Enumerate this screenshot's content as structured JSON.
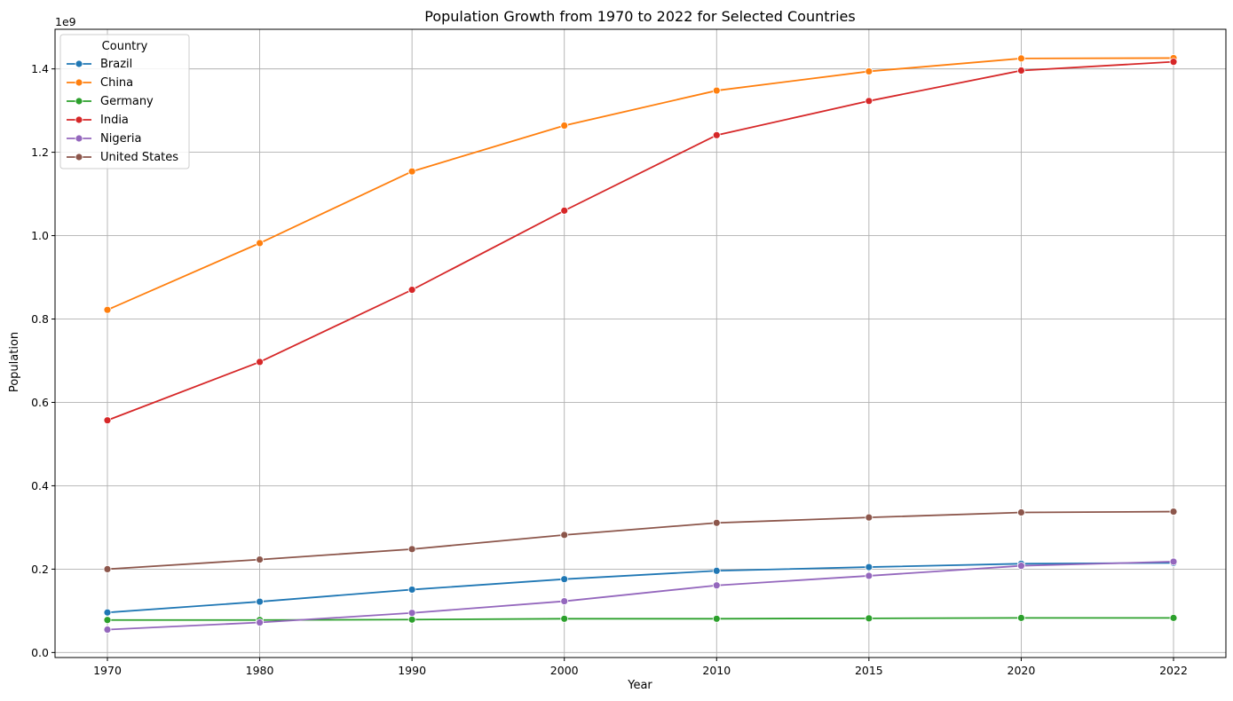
{
  "chart_data": {
    "type": "line",
    "title": "Population Growth from 1970 to 2022 for Selected Countries",
    "xlabel": "Year",
    "ylabel": "Population",
    "y_offset_label": "1e9",
    "x_categories": [
      "1970",
      "1980",
      "1990",
      "2000",
      "2010",
      "2015",
      "2020",
      "2022"
    ],
    "yticks": [
      0.0,
      0.2,
      0.4,
      0.6,
      0.8,
      1.0,
      1.2,
      1.4
    ],
    "ytick_labels": [
      "0.0",
      "0.2",
      "0.4",
      "0.6",
      "0.8",
      "1.0",
      "1.2",
      "1.4"
    ],
    "ylim": [
      -0.012,
      1.495
    ],
    "y_scale_factor": 1000000000,
    "grid": true,
    "legend_placement": "upper-left",
    "legend_title": "Country",
    "series": [
      {
        "name": "Brazil",
        "color": "#1f77b4",
        "values": [
          0.096,
          0.122,
          0.151,
          0.176,
          0.196,
          0.205,
          0.213,
          0.215
        ]
      },
      {
        "name": "China",
        "color": "#ff7f0e",
        "values": [
          0.822,
          0.982,
          1.154,
          1.264,
          1.348,
          1.394,
          1.425,
          1.426
        ]
      },
      {
        "name": "Germany",
        "color": "#2ca02c",
        "values": [
          0.078,
          0.078,
          0.079,
          0.081,
          0.081,
          0.082,
          0.083,
          0.083
        ]
      },
      {
        "name": "India",
        "color": "#d62728",
        "values": [
          0.557,
          0.697,
          0.87,
          1.06,
          1.241,
          1.323,
          1.396,
          1.417
        ]
      },
      {
        "name": "Nigeria",
        "color": "#9467bd",
        "values": [
          0.055,
          0.072,
          0.095,
          0.123,
          0.161,
          0.184,
          0.208,
          0.218
        ]
      },
      {
        "name": "United States",
        "color": "#8c564b",
        "values": [
          0.2,
          0.223,
          0.248,
          0.282,
          0.311,
          0.324,
          0.336,
          0.338
        ]
      }
    ]
  }
}
